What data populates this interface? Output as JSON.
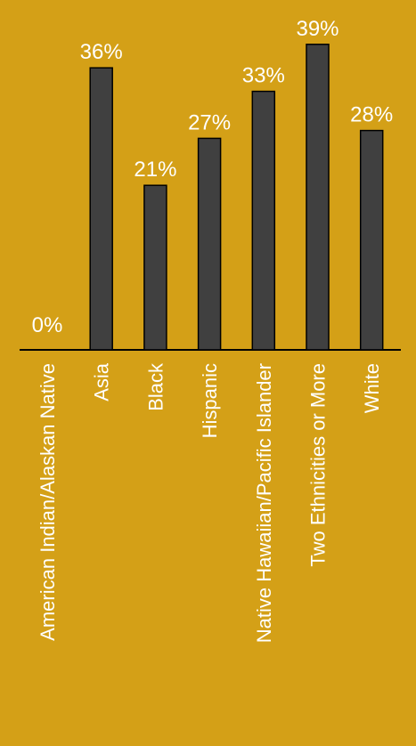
{
  "chart_data": {
    "type": "bar",
    "categories": [
      "American Indian/Alaskan Native",
      "Asia",
      "Black",
      "Hispanic",
      "Native Hawaiian/Pacific Islander",
      "Two Ethnicities or More",
      "White"
    ],
    "values": [
      0,
      36,
      21,
      27,
      33,
      39,
      28
    ],
    "value_labels": [
      "0%",
      "36%",
      "21%",
      "27%",
      "33%",
      "39%",
      "28%"
    ],
    "ylim": [
      0,
      39
    ],
    "grid": false,
    "legend": "none",
    "colors": {
      "background": "#D4A017",
      "bar": "#404040",
      "bar_outline": "#000000",
      "text": "#ffffff",
      "axis": "#000000"
    }
  }
}
